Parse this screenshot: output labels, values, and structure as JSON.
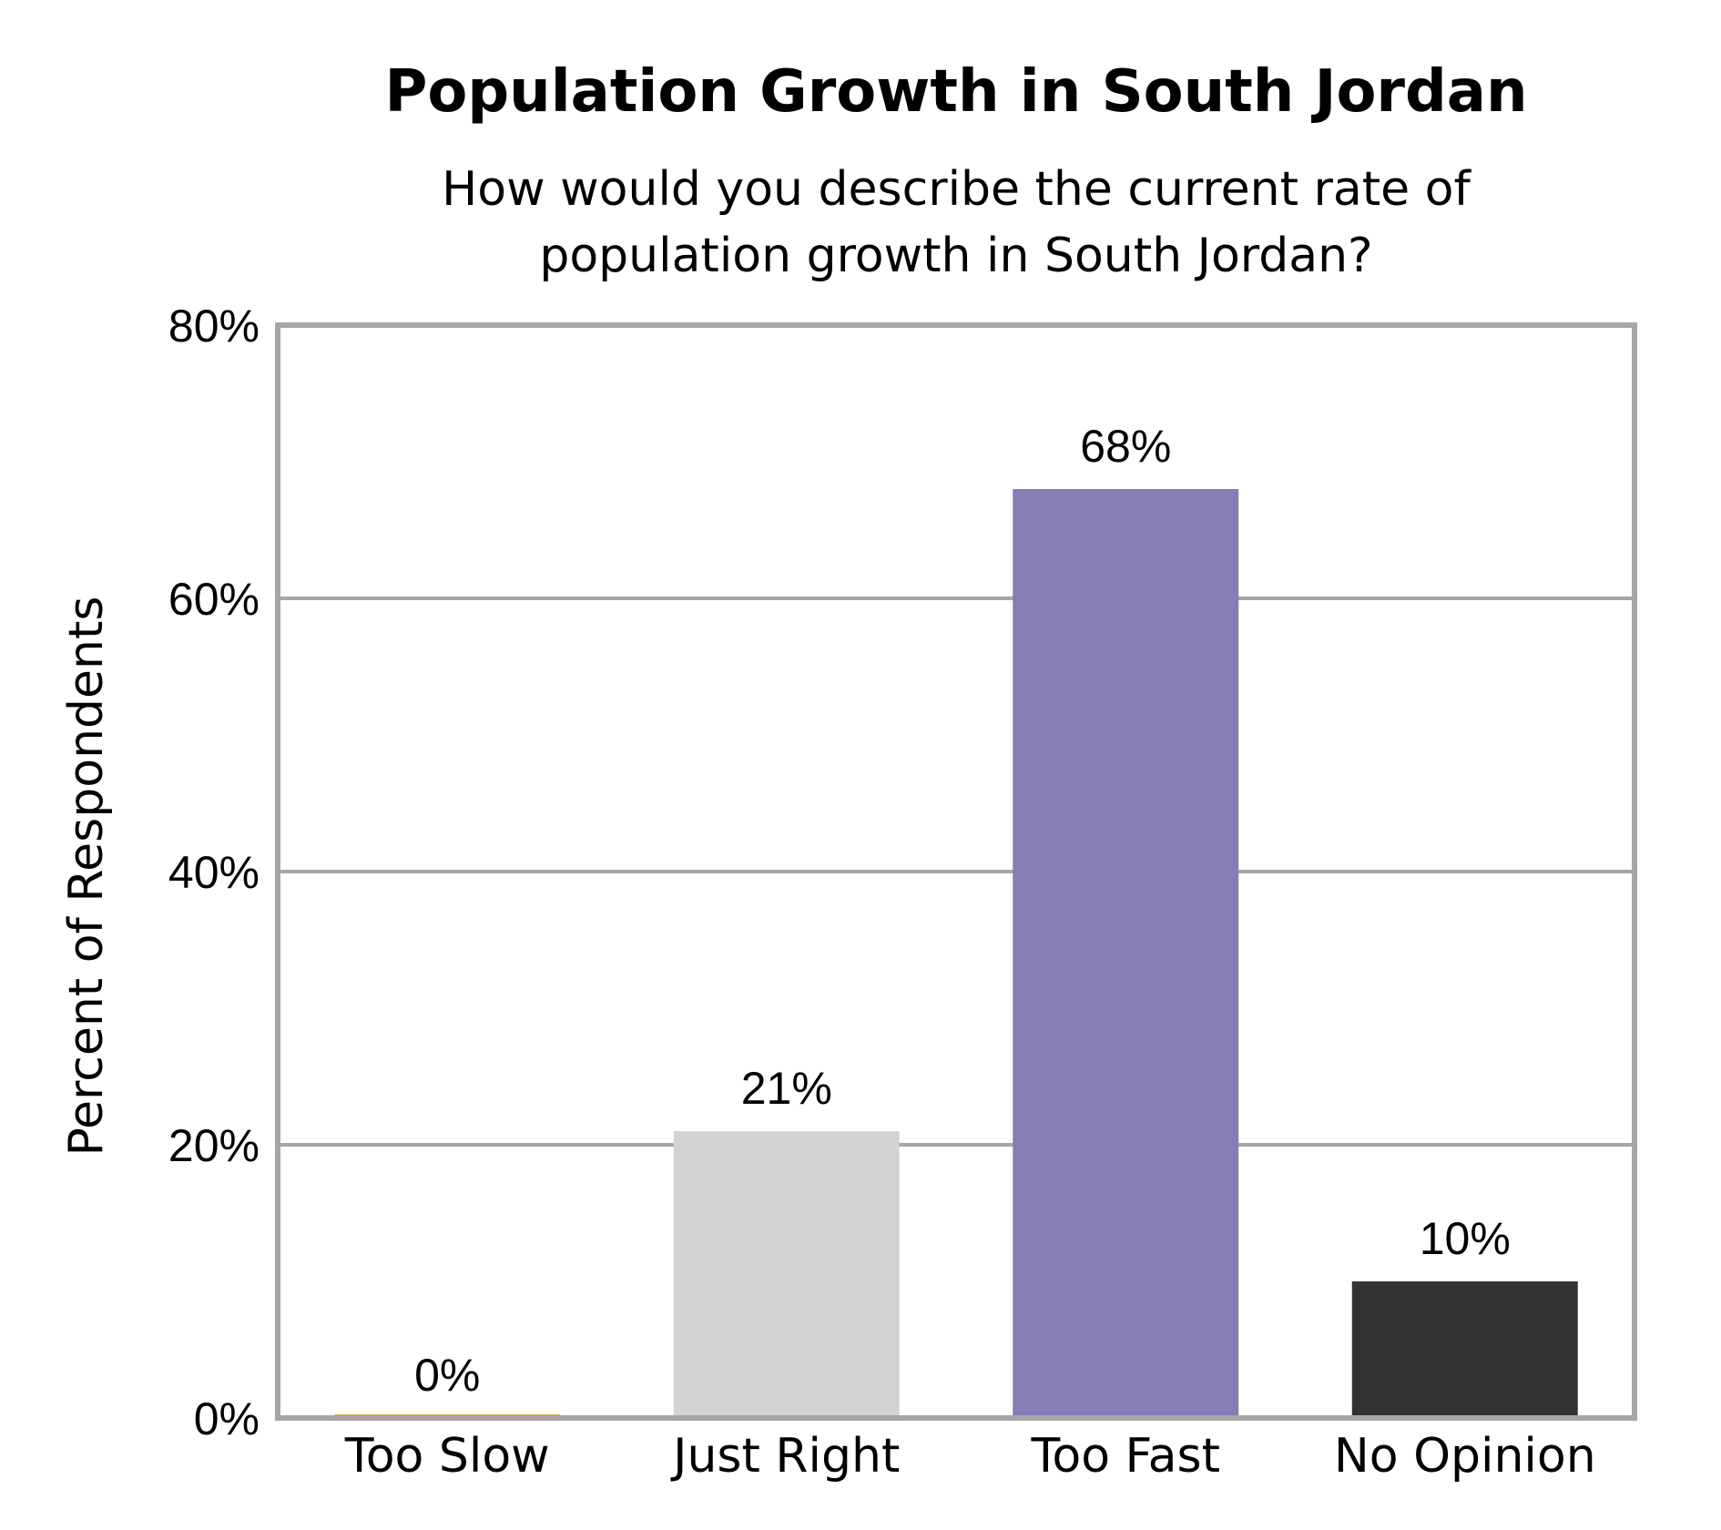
{
  "chart_data": {
    "type": "bar",
    "title": "Population Growth in South Jordan",
    "subtitle_lines": [
      "How would you describe the current rate of",
      "population growth in South Jordan?"
    ],
    "xlabel": "",
    "ylabel": "Percent of Respondents",
    "categories": [
      "Too Slow",
      "Just Right",
      "Too Fast",
      "No Opinion"
    ],
    "values": [
      0,
      21,
      68,
      10
    ],
    "data_labels": [
      "0%",
      "21%",
      "68%",
      "10%"
    ],
    "bar_colors": [
      "#E8A34A",
      "#D3D3D3",
      "#887CB5",
      "#333333"
    ],
    "ylim": [
      0,
      80
    ],
    "yticks": [
      0,
      20,
      40,
      60,
      80
    ],
    "ytick_labels": [
      "0%",
      "20%",
      "40%",
      "60%",
      "80%"
    ],
    "grid": true,
    "grid_color": "#A6A6A6",
    "frame_color": "#A6A6A6",
    "legend": "none"
  }
}
